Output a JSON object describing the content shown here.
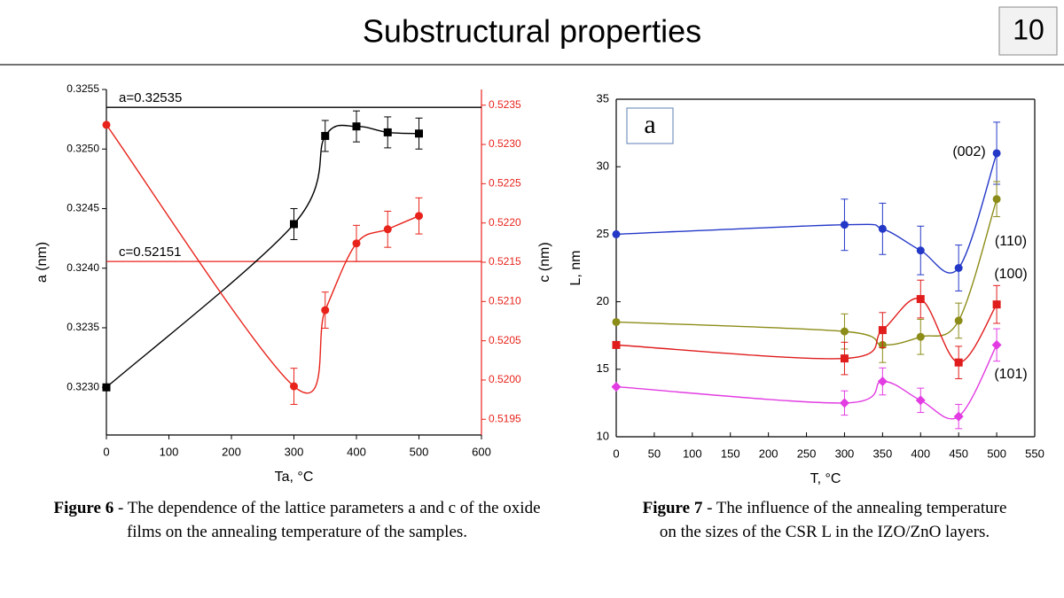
{
  "header": {
    "title": "Substructural properties",
    "page": "10"
  },
  "chart_data": [
    {
      "type": "scatter",
      "xlabel": "Ta, °C",
      "ylabel": "a (nm)",
      "y2label": "c (nm)",
      "x": [
        0,
        300,
        350,
        400,
        450,
        500
      ],
      "xlim": [
        0,
        600
      ],
      "xticks": [
        0,
        100,
        200,
        300,
        400,
        500,
        600
      ],
      "ylim": [
        0.3226,
        0.3255
      ],
      "yticks": [
        {
          "value": 0.323,
          "label": "0.3230"
        },
        0.3235,
        {
          "value": 0.324,
          "label": "0.3240"
        },
        0.3245,
        {
          "value": 0.325,
          "label": "0.3250"
        },
        0.3255
      ],
      "y2lim": [
        0.5193,
        0.5237
      ],
      "y2ticks": [
        0.5195,
        {
          "value": 0.52,
          "label": "0.5200"
        },
        0.5205,
        {
          "value": 0.521,
          "label": "0.5210"
        },
        0.5215,
        {
          "value": 0.522,
          "label": "0.5220"
        },
        0.5225,
        {
          "value": 0.523,
          "label": "0.5230"
        },
        0.5235
      ],
      "series": [
        {
          "color": "#000000",
          "marker": "square",
          "values": [
            0.323,
            0.32437,
            0.32511,
            0.32519,
            0.32514,
            0.32513
          ],
          "errors": [
            0,
            0.00013,
            0.00013,
            0.00013,
            0.00013,
            0.00013
          ]
        },
        {
          "color": "#e8231b",
          "marker": "circle",
          "axis": "y2",
          "values": [
            0.52325,
            0.51992,
            0.52089,
            0.52174,
            0.52192,
            0.52209
          ],
          "errors": [
            0,
            0.00023,
            0.00023,
            0.00023,
            0.00023,
            0.00023
          ]
        }
      ],
      "hlines": [
        {
          "value": 0.32535,
          "label": "a=0.32535",
          "color": "#000000"
        },
        {
          "value": 0.52151,
          "label": "c=0.52151",
          "color": "#e8231b",
          "axis": "y2"
        }
      ]
    },
    {
      "type": "scatter",
      "xlabel": "T, °C",
      "ylabel": "L, nm",
      "box_label": "a",
      "x": [
        0,
        300,
        350,
        400,
        450,
        500
      ],
      "xlim": [
        0,
        550
      ],
      "xticks": [
        0,
        50,
        100,
        150,
        200,
        250,
        300,
        350,
        400,
        450,
        500,
        550
      ],
      "ylim": [
        10,
        35
      ],
      "yticks": [
        10,
        15,
        20,
        25,
        30,
        35
      ],
      "series": [
        {
          "name": "(002)",
          "color": "#2438c8",
          "marker": "circle",
          "values": [
            25.0,
            25.7,
            25.4,
            23.8,
            22.5,
            31.0
          ],
          "errors": [
            0,
            1.9,
            1.9,
            1.8,
            1.7,
            2.3
          ]
        },
        {
          "name": "(110)",
          "color": "#8c8c18",
          "marker": "circle",
          "values": [
            18.5,
            17.8,
            16.8,
            17.4,
            18.6,
            27.6
          ],
          "errors": [
            0,
            1.3,
            1.3,
            1.3,
            1.3,
            1.3
          ]
        },
        {
          "name": "(100)",
          "color": "#e01c1c",
          "marker": "square",
          "values": [
            16.8,
            15.8,
            17.9,
            20.2,
            15.5,
            19.8
          ],
          "errors": [
            0,
            1.2,
            1.3,
            1.4,
            1.2,
            1.4
          ]
        },
        {
          "name": "(101)",
          "color": "#e23ce2",
          "marker": "diamond",
          "values": [
            13.7,
            12.5,
            14.1,
            12.7,
            11.5,
            16.8
          ],
          "errors": [
            0,
            0.9,
            1.0,
            0.9,
            0.9,
            1.2
          ]
        }
      ]
    }
  ],
  "captions": [
    {
      "label": "Figure 6",
      "text": " - The dependence of the lattice parameters a and c of the oxide films on the annealing temperature of the samples."
    },
    {
      "label": "Figure 7",
      "text": " - The influence of the annealing temperature on the sizes of the CSR L in the IZO/ZnO layers."
    }
  ]
}
